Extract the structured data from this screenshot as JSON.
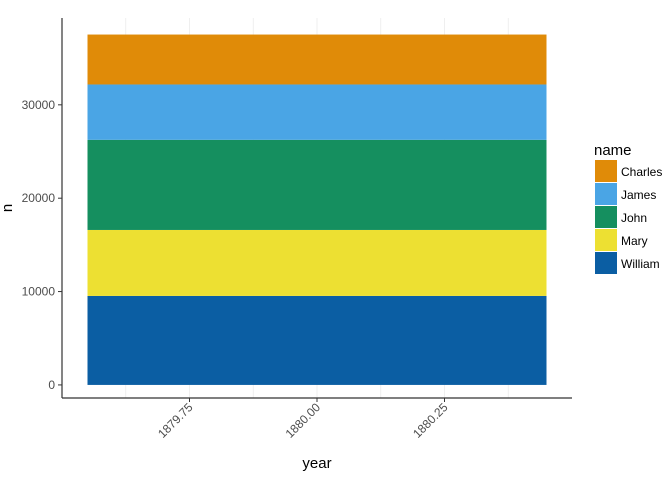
{
  "chart_data": {
    "type": "bar",
    "stacked": true,
    "xlabel": "year",
    "ylabel": "n",
    "x": [
      1880
    ],
    "x_ticks": [
      "1879.75",
      "1880.00",
      "1880.25"
    ],
    "x_tick_values": [
      1879.75,
      1880.0,
      1880.25
    ],
    "xlim": [
      1879.5,
      1880.5
    ],
    "bar_x_range": [
      1879.55,
      1880.45
    ],
    "y_ticks": [
      "0",
      "10000",
      "20000",
      "30000"
    ],
    "y_tick_values": [
      0,
      10000,
      20000,
      30000
    ],
    "ylim": [
      -1400,
      39300
    ],
    "grid": true,
    "legend": {
      "title": "name",
      "position": "right",
      "entries": [
        "Charles",
        "James",
        "John",
        "Mary",
        "William"
      ]
    },
    "series": [
      {
        "name": "William",
        "values": [
          9533
        ],
        "color": "#0B5EA3"
      },
      {
        "name": "Mary",
        "values": [
          7065
        ],
        "color": "#EDE032"
      },
      {
        "name": "John",
        "values": [
          9655
        ],
        "color": "#158F5F"
      },
      {
        "name": "James",
        "values": [
          5927
        ],
        "color": "#4AA5E5"
      },
      {
        "name": "Charles",
        "values": [
          5348
        ],
        "color": "#E08B08"
      }
    ]
  }
}
